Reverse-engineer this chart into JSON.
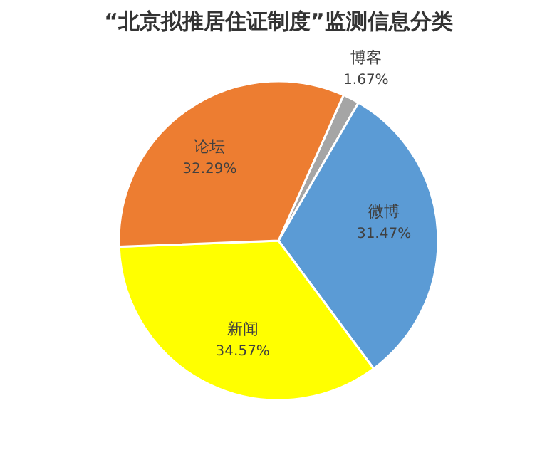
{
  "chart_data": {
    "type": "pie",
    "title": "“北京拟推居住证制度”监测信息分类",
    "categories": [
      "博客",
      "微博",
      "新闻",
      "论坛"
    ],
    "values": [
      1.67,
      31.47,
      34.57,
      32.29
    ],
    "colors": [
      "#a5a5a5",
      "#5b9bd5",
      "#ffff00",
      "#ed7d31"
    ],
    "value_labels": [
      "1.67%",
      "31.47%",
      "34.57%",
      "32.29%"
    ],
    "legend": false
  }
}
